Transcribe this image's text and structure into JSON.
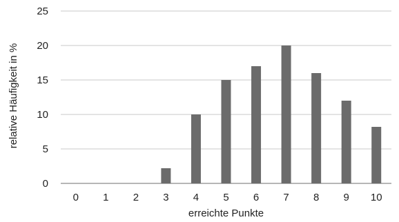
{
  "chart_data": {
    "type": "bar",
    "title": "",
    "xlabel": "erreichte Punkte",
    "ylabel": "relative Häufigkeit in %",
    "categories": [
      "0",
      "1",
      "2",
      "3",
      "4",
      "5",
      "6",
      "7",
      "8",
      "9",
      "10"
    ],
    "values": [
      0,
      0,
      0,
      2.2,
      10,
      15,
      17,
      20,
      16,
      12,
      8.2
    ],
    "ylim": [
      0,
      25
    ],
    "yticks": [
      0,
      5,
      10,
      15,
      20,
      25
    ],
    "grid": true,
    "legend": "none",
    "colors": {
      "bar": "#6b6b6b",
      "grid": "#c8c8c8",
      "axis": "#8a8a8a",
      "text": "#222222"
    }
  }
}
